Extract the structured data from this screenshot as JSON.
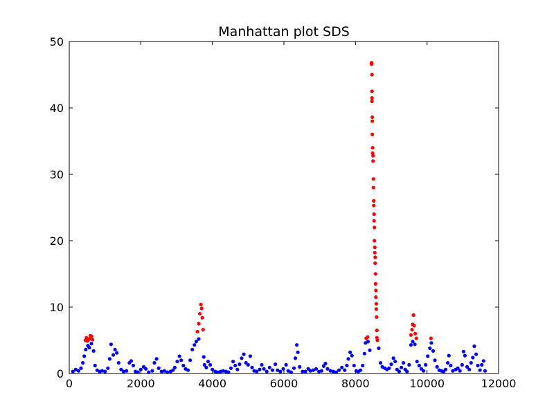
{
  "chart_data": {
    "type": "scatter",
    "title": "Manhattan plot SDS",
    "xlabel": "",
    "ylabel": "",
    "xlim": [
      0,
      12000
    ],
    "ylim": [
      0,
      50
    ],
    "xticks": [
      0,
      2000,
      4000,
      6000,
      8000,
      10000,
      12000
    ],
    "yticks": [
      0,
      10,
      20,
      30,
      40,
      50
    ],
    "grid": false,
    "legend": "none",
    "colors": {
      "significant": "#ff0000",
      "nonsignificant": "#0000ff"
    },
    "series": [
      {
        "color": "#0000ff",
        "points": [
          [
            100,
            0.3
          ],
          [
            180,
            0.6
          ],
          [
            260,
            0.4
          ],
          [
            330,
            0.8
          ],
          [
            380,
            1.6
          ],
          [
            420,
            2.6
          ],
          [
            460,
            3.6
          ],
          [
            520,
            4.2
          ],
          [
            560,
            3.9
          ],
          [
            620,
            4.5
          ],
          [
            680,
            3.4
          ],
          [
            720,
            1.2
          ],
          [
            780,
            0.5
          ],
          [
            850,
            0.3
          ],
          [
            920,
            0.4
          ],
          [
            1000,
            0.3
          ],
          [
            1080,
            0.8
          ],
          [
            1130,
            2.2
          ],
          [
            1170,
            4.4
          ],
          [
            1230,
            2.8
          ],
          [
            1280,
            3.6
          ],
          [
            1330,
            3.1
          ],
          [
            1380,
            1.6
          ],
          [
            1450,
            0.6
          ],
          [
            1520,
            0.3
          ],
          [
            1600,
            0.4
          ],
          [
            1680,
            1.6
          ],
          [
            1730,
            1.9
          ],
          [
            1790,
            1.2
          ],
          [
            1850,
            0.3
          ],
          [
            1920,
            0.2
          ],
          [
            2000,
            0.6
          ],
          [
            2080,
            1.0
          ],
          [
            2140,
            0.7
          ],
          [
            2220,
            0.2
          ],
          [
            2320,
            0.4
          ],
          [
            2380,
            1.6
          ],
          [
            2440,
            2.2
          ],
          [
            2500,
            0.8
          ],
          [
            2580,
            0.3
          ],
          [
            2660,
            0.4
          ],
          [
            2740,
            0.2
          ],
          [
            2830,
            0.3
          ],
          [
            2900,
            0.5
          ],
          [
            2950,
            0.9
          ],
          [
            3020,
            1.8
          ],
          [
            3080,
            2.6
          ],
          [
            3130,
            2.0
          ],
          [
            3190,
            1.2
          ],
          [
            3250,
            0.7
          ],
          [
            3320,
            0.5
          ],
          [
            3380,
            2.0
          ],
          [
            3440,
            3.6
          ],
          [
            3500,
            4.3
          ],
          [
            3550,
            4.8
          ],
          [
            3620,
            5.2
          ],
          [
            3760,
            2.5
          ],
          [
            3780,
            1.3
          ],
          [
            3830,
            0.9
          ],
          [
            3880,
            1.8
          ],
          [
            3940,
            1.3
          ],
          [
            4000,
            0.6
          ],
          [
            4080,
            0.3
          ],
          [
            4150,
            0.2
          ],
          [
            4230,
            0.3
          ],
          [
            4300,
            0.4
          ],
          [
            4380,
            0.3
          ],
          [
            4450,
            0.2
          ],
          [
            4520,
            0.8
          ],
          [
            4580,
            1.8
          ],
          [
            4640,
            1.2
          ],
          [
            4700,
            0.6
          ],
          [
            4760,
            1.4
          ],
          [
            4820,
            2.3
          ],
          [
            4880,
            2.9
          ],
          [
            4940,
            1.6
          ],
          [
            5000,
            1.3
          ],
          [
            5060,
            2.6
          ],
          [
            5110,
            0.9
          ],
          [
            5170,
            0.4
          ],
          [
            5240,
            0.3
          ],
          [
            5320,
            0.6
          ],
          [
            5380,
            1.3
          ],
          [
            5440,
            0.7
          ],
          [
            5520,
            0.3
          ],
          [
            5600,
            0.9
          ],
          [
            5680,
            0.5
          ],
          [
            5760,
            1.4
          ],
          [
            5820,
            0.5
          ],
          [
            5900,
            0.3
          ],
          [
            5980,
            0.7
          ],
          [
            6060,
            1.3
          ],
          [
            6120,
            0.4
          ],
          [
            6200,
            0.2
          ],
          [
            6280,
            0.8
          ],
          [
            6320,
            2.3
          ],
          [
            6360,
            4.3
          ],
          [
            6390,
            3.2
          ],
          [
            6440,
            1.0
          ],
          [
            6520,
            0.3
          ],
          [
            6600,
            0.3
          ],
          [
            6680,
            0.7
          ],
          [
            6740,
            0.4
          ],
          [
            6820,
            0.5
          ],
          [
            6900,
            0.7
          ],
          [
            6980,
            0.3
          ],
          [
            7050,
            0.4
          ],
          [
            7110,
            1.1
          ],
          [
            7160,
            1.5
          ],
          [
            7220,
            0.7
          ],
          [
            7300,
            0.4
          ],
          [
            7380,
            0.3
          ],
          [
            7460,
            0.2
          ],
          [
            7540,
            0.5
          ],
          [
            7620,
            0.9
          ],
          [
            7700,
            0.5
          ],
          [
            7760,
            1.2
          ],
          [
            7800,
            2.2
          ],
          [
            7850,
            3.2
          ],
          [
            7900,
            2.7
          ],
          [
            7960,
            1.2
          ],
          [
            8020,
            0.4
          ],
          [
            8080,
            0.3
          ],
          [
            8140,
            0.5
          ],
          [
            8200,
            1.2
          ],
          [
            8250,
            3.0
          ],
          [
            8280,
            4.6
          ],
          [
            8350,
            4.8
          ],
          [
            8400,
            3.5
          ],
          [
            8650,
            3.8
          ],
          [
            8700,
            1.6
          ],
          [
            8750,
            1.0
          ],
          [
            8820,
            0.8
          ],
          [
            8880,
            0.6
          ],
          [
            8940,
            0.8
          ],
          [
            9000,
            1.4
          ],
          [
            9060,
            2.3
          ],
          [
            9110,
            1.8
          ],
          [
            9160,
            0.6
          ],
          [
            9220,
            0.3
          ],
          [
            9280,
            0.9
          ],
          [
            9340,
            1.6
          ],
          [
            9390,
            0.6
          ],
          [
            9440,
            0.3
          ],
          [
            9500,
            1.3
          ],
          [
            9550,
            4.3
          ],
          [
            9600,
            4.8
          ],
          [
            9660,
            4.4
          ],
          [
            9720,
            1.8
          ],
          [
            9780,
            1.2
          ],
          [
            9840,
            0.7
          ],
          [
            9900,
            0.4
          ],
          [
            9960,
            1.3
          ],
          [
            10020,
            2.6
          ],
          [
            10080,
            3.8
          ],
          [
            10120,
            4.6
          ],
          [
            10170,
            3.4
          ],
          [
            10220,
            2.0
          ],
          [
            10280,
            1.0
          ],
          [
            10340,
            0.5
          ],
          [
            10400,
            0.4
          ],
          [
            10460,
            0.3
          ],
          [
            10520,
            0.6
          ],
          [
            10580,
            1.6
          ],
          [
            10610,
            2.7
          ],
          [
            10660,
            1.2
          ],
          [
            10720,
            0.4
          ],
          [
            10800,
            0.6
          ],
          [
            10860,
            0.8
          ],
          [
            10920,
            0.4
          ],
          [
            10980,
            1.3
          ],
          [
            11020,
            3.3
          ],
          [
            11060,
            2.7
          ],
          [
            11120,
            1.0
          ],
          [
            11180,
            0.6
          ],
          [
            11230,
            1.6
          ],
          [
            11280,
            2.4
          ],
          [
            11320,
            4.1
          ],
          [
            11370,
            2.9
          ],
          [
            11420,
            1.2
          ],
          [
            11480,
            0.5
          ],
          [
            11530,
            1.3
          ],
          [
            11580,
            1.9
          ],
          [
            11620,
            0.4
          ]
        ]
      },
      {
        "color": "#ff0000",
        "points": [
          [
            450,
            5.0
          ],
          [
            480,
            5.4
          ],
          [
            510,
            4.9
          ],
          [
            560,
            5.2
          ],
          [
            590,
            5.7
          ],
          [
            620,
            5.6
          ],
          [
            650,
            5.1
          ],
          [
            3580,
            6.3
          ],
          [
            3620,
            7.5
          ],
          [
            3650,
            9.0
          ],
          [
            3680,
            10.4
          ],
          [
            3700,
            9.8
          ],
          [
            3720,
            8.4
          ],
          [
            3740,
            6.6
          ],
          [
            8300,
            5.3
          ],
          [
            8340,
            5.5
          ],
          [
            8450,
            46.8
          ],
          [
            8450,
            46.6
          ],
          [
            8460,
            45.0
          ],
          [
            8460,
            42.5
          ],
          [
            8460,
            41.5
          ],
          [
            8460,
            41.0
          ],
          [
            8470,
            38.6
          ],
          [
            8470,
            38.0
          ],
          [
            8470,
            36.0
          ],
          [
            8480,
            34.0
          ],
          [
            8480,
            33.2
          ],
          [
            8490,
            32.8
          ],
          [
            8490,
            32.0
          ],
          [
            8500,
            29.3
          ],
          [
            8500,
            28.0
          ],
          [
            8510,
            26.0
          ],
          [
            8510,
            25.3
          ],
          [
            8520,
            24.0
          ],
          [
            8520,
            23.0
          ],
          [
            8530,
            22.0
          ],
          [
            8530,
            20.0
          ],
          [
            8540,
            19.0
          ],
          [
            8540,
            18.2
          ],
          [
            8550,
            17.5
          ],
          [
            8550,
            16.6
          ],
          [
            8560,
            15.0
          ],
          [
            8560,
            13.5
          ],
          [
            8570,
            12.5
          ],
          [
            8570,
            11.5
          ],
          [
            8580,
            10.5
          ],
          [
            8580,
            9.7
          ],
          [
            8590,
            8.5
          ],
          [
            8600,
            6.5
          ],
          [
            8600,
            5.4
          ],
          [
            8610,
            5.0
          ],
          [
            9550,
            5.8
          ],
          [
            9580,
            6.6
          ],
          [
            9600,
            7.4
          ],
          [
            9620,
            8.8
          ],
          [
            9640,
            7.2
          ],
          [
            9670,
            6.0
          ],
          [
            9700,
            5.3
          ],
          [
            10110,
            5.3
          ]
        ]
      }
    ]
  }
}
